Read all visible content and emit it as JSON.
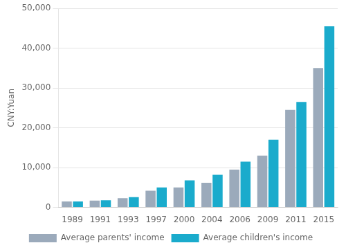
{
  "chart_data": {
    "type": "bar",
    "categories": [
      "1989",
      "1991",
      "1993",
      "1997",
      "2000",
      "2004",
      "2006",
      "2009",
      "2011",
      "2015"
    ],
    "series": [
      {
        "name": "Average parents' income",
        "color": "#9baabb",
        "values": [
          1500,
          1700,
          2300,
          4200,
          5000,
          6200,
          9500,
          13000,
          24500,
          35000
        ]
      },
      {
        "name": "Average children's income",
        "color": "#1aabcc",
        "values": [
          1500,
          1800,
          2600,
          5000,
          6800,
          8200,
          11500,
          17000,
          26500,
          45500
        ]
      }
    ],
    "ylabel": "CNY:Yuan",
    "ylim": [
      0,
      50000
    ],
    "yticks": [
      0,
      {
        "value": 10000,
        "label": "10,000"
      },
      {
        "value": 20000,
        "label": "20,000"
      },
      {
        "value": 30000,
        "label": "30,000"
      },
      {
        "value": 40000,
        "label": "40,000"
      },
      {
        "value": 50000,
        "label": "50,000"
      }
    ],
    "grid": true,
    "legend": "bottom"
  }
}
